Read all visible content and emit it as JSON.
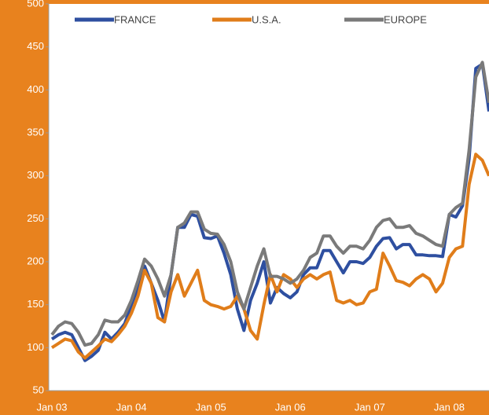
{
  "chart_data": {
    "type": "line",
    "categories": [
      "Jan 03",
      null,
      null,
      null,
      null,
      null,
      null,
      null,
      null,
      null,
      null,
      null,
      "Jan 04",
      null,
      null,
      null,
      null,
      null,
      null,
      null,
      null,
      null,
      null,
      null,
      "Jan 05",
      null,
      null,
      null,
      null,
      null,
      null,
      null,
      null,
      null,
      null,
      null,
      "Jan 06",
      null,
      null,
      null,
      null,
      null,
      null,
      null,
      null,
      null,
      null,
      null,
      "Jan 07",
      null,
      null,
      null,
      null,
      null,
      null,
      null,
      null,
      null,
      null,
      null,
      "Jan 08",
      null,
      null,
      null,
      null,
      null,
      null
    ],
    "series": [
      {
        "name": "FRANCE",
        "color": "#2e4fa0",
        "values": [
          110,
          115,
          118,
          115,
          100,
          85,
          90,
          97,
          118,
          110,
          118,
          128,
          150,
          170,
          195,
          175,
          155,
          130,
          185,
          240,
          240,
          255,
          253,
          228,
          227,
          230,
          210,
          185,
          145,
          120,
          155,
          175,
          200,
          152,
          170,
          163,
          158,
          165,
          185,
          193,
          193,
          213,
          213,
          200,
          187,
          200,
          200,
          198,
          205,
          218,
          227,
          228,
          215,
          220,
          220,
          208,
          208,
          207,
          207,
          206,
          255,
          252,
          265,
          320,
          425,
          430,
          375
        ]
      },
      {
        "name": "U.S.A.",
        "color": "#e07d1a",
        "values": [
          100,
          105,
          110,
          108,
          95,
          88,
          95,
          102,
          110,
          107,
          115,
          125,
          140,
          160,
          190,
          175,
          135,
          130,
          165,
          185,
          160,
          175,
          190,
          155,
          150,
          148,
          145,
          148,
          160,
          145,
          120,
          110,
          150,
          185,
          165,
          185,
          180,
          170,
          180,
          185,
          180,
          185,
          188,
          155,
          152,
          155,
          150,
          152,
          165,
          168,
          210,
          195,
          178,
          176,
          172,
          180,
          185,
          180,
          165,
          175,
          205,
          215,
          218,
          290,
          325,
          318,
          300
        ]
      },
      {
        "name": "EUROPE",
        "color": "#7a7a7a",
        "values": [
          115,
          125,
          130,
          128,
          118,
          103,
          105,
          115,
          132,
          130,
          130,
          138,
          155,
          178,
          203,
          195,
          180,
          160,
          185,
          240,
          245,
          258,
          258,
          238,
          233,
          232,
          220,
          200,
          165,
          145,
          170,
          195,
          215,
          183,
          183,
          180,
          175,
          180,
          190,
          205,
          210,
          230,
          230,
          218,
          210,
          218,
          218,
          215,
          225,
          240,
          248,
          250,
          240,
          240,
          242,
          233,
          230,
          225,
          220,
          218,
          255,
          263,
          268,
          330,
          415,
          432,
          385
        ]
      }
    ],
    "ylim": [
      50,
      500
    ],
    "yticks": [
      50,
      100,
      150,
      200,
      250,
      300,
      350,
      400,
      450,
      500
    ],
    "legend": "top"
  }
}
